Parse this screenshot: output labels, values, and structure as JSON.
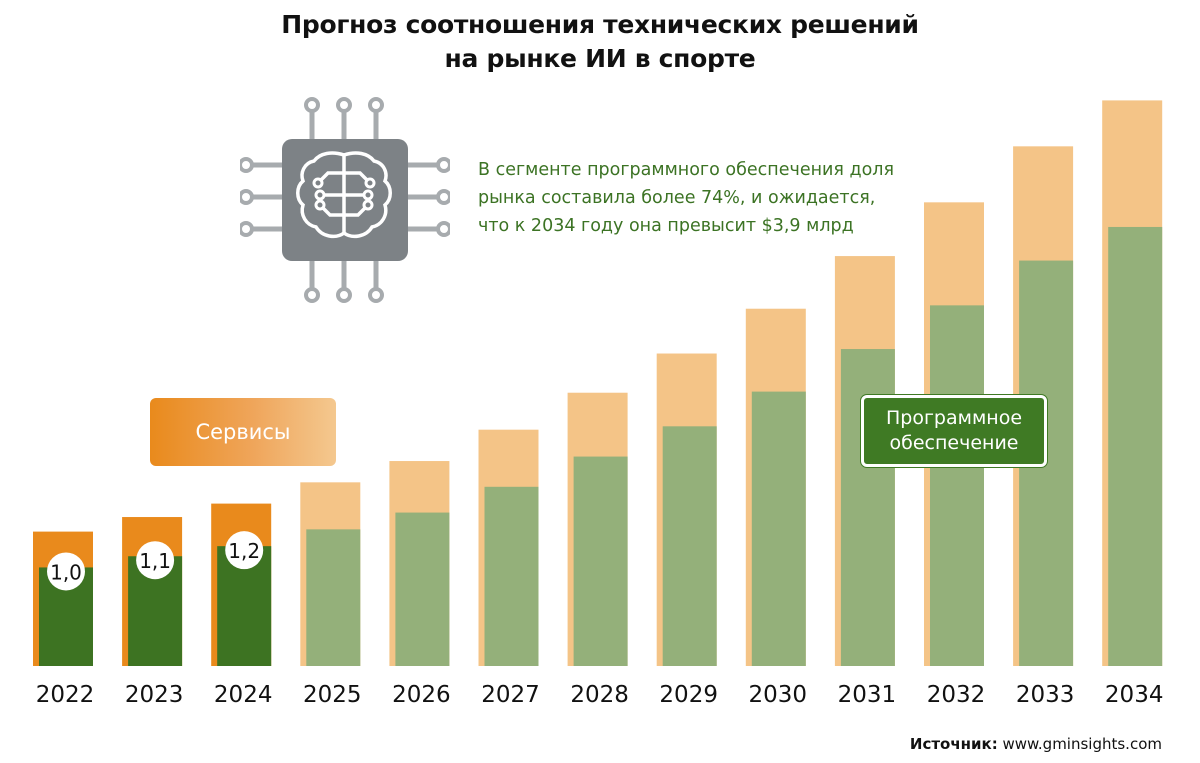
{
  "chart_data": {
    "type": "bar",
    "title_lines": [
      "Прогноз соотношения технических решений",
      "на рынке ИИ в спорте"
    ],
    "categories": [
      "2022",
      "2023",
      "2024",
      "2025",
      "2026",
      "2027",
      "2028",
      "2029",
      "2030",
      "2031",
      "2032",
      "2033",
      "2034"
    ],
    "series": [
      {
        "name": "Сервисы",
        "values": [
          0.32,
          0.35,
          0.38,
          0.42,
          0.46,
          0.51,
          0.57,
          0.65,
          0.74,
          0.83,
          0.92,
          1.02,
          1.13
        ]
      },
      {
        "name": "Программное обеспечение",
        "values": [
          0.88,
          0.98,
          1.07,
          1.22,
          1.37,
          1.6,
          1.87,
          2.14,
          2.45,
          2.83,
          3.22,
          3.62,
          3.92
        ]
      }
    ],
    "value_labels": [
      "1,0",
      "1,1",
      "1,2"
    ],
    "annotation_lines": [
      "В сегменте программного обеспечения доля",
      "рынка составила более 74%, и ожидается,",
      "что к 2034 году она превысит $3,9 млрд"
    ],
    "legend": {
      "services": "Сервисы",
      "software_lines": [
        "Программное",
        "обеспечение"
      ]
    },
    "stacked": true,
    "colors": {
      "services_actual": "#e98a1c",
      "services_forecast": "#f4c487",
      "software_actual": "#3d7322",
      "software_forecast": "#94b07a"
    }
  },
  "source": {
    "label": "Источник:",
    "text": " www.gminsights.com"
  },
  "icon": "ai-brain-chip-icon"
}
